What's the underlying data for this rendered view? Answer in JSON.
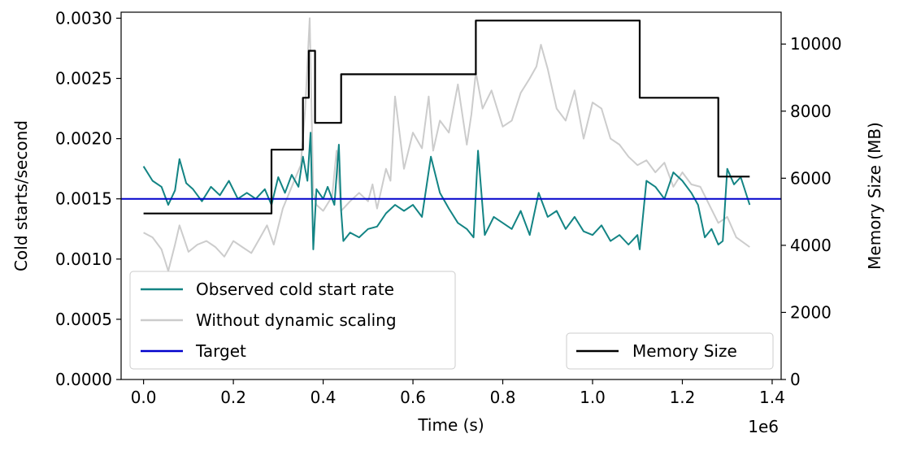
{
  "chart_data": {
    "type": "line",
    "xlabel": "Time (s)",
    "x_offset_label": "1e6",
    "ylabel": "Cold starts/second",
    "y2label": "Memory Size (MB)",
    "xlim": [
      -0.05,
      1.42
    ],
    "ylim": [
      0,
      0.00305
    ],
    "y2lim": [
      0,
      10950
    ],
    "xticks": [
      0.0,
      0.2,
      0.4,
      0.6,
      0.8,
      1.0,
      1.2,
      1.4
    ],
    "xtick_labels": [
      "0.0",
      "0.2",
      "0.4",
      "0.6",
      "0.8",
      "1.0",
      "1.2",
      "1.4"
    ],
    "yticks": [
      0,
      0.0005,
      0.001,
      0.0015,
      0.002,
      0.0025,
      0.003
    ],
    "ytick_labels": [
      "0.0000",
      "0.0005",
      "0.0010",
      "0.0015",
      "0.0020",
      "0.0025",
      "0.0030"
    ],
    "y2ticks": [
      0,
      2000,
      4000,
      6000,
      8000,
      10000
    ],
    "y2tick_labels": [
      "0",
      "2000",
      "4000",
      "6000",
      "8000",
      "10000"
    ],
    "grid": false,
    "legend_main": {
      "placement": "lower-left",
      "entries": [
        "Observed cold start rate",
        "Without dynamic scaling",
        "Target"
      ]
    },
    "legend_secondary": {
      "placement": "lower-right",
      "entries": [
        "Memory Size"
      ]
    },
    "series": [
      {
        "name": "Observed cold start rate",
        "axis": "left",
        "color": "#138484",
        "x": [
          0.0,
          0.02,
          0.04,
          0.055,
          0.07,
          0.08,
          0.095,
          0.11,
          0.13,
          0.15,
          0.17,
          0.19,
          0.21,
          0.23,
          0.25,
          0.27,
          0.285,
          0.3,
          0.315,
          0.33,
          0.345,
          0.355,
          0.365,
          0.372,
          0.378,
          0.385,
          0.4,
          0.41,
          0.425,
          0.435,
          0.44,
          0.445,
          0.46,
          0.48,
          0.5,
          0.52,
          0.54,
          0.56,
          0.58,
          0.6,
          0.62,
          0.64,
          0.66,
          0.68,
          0.7,
          0.72,
          0.735,
          0.745,
          0.76,
          0.78,
          0.8,
          0.82,
          0.84,
          0.86,
          0.88,
          0.9,
          0.92,
          0.94,
          0.96,
          0.98,
          1.0,
          1.02,
          1.04,
          1.06,
          1.08,
          1.1,
          1.105,
          1.12,
          1.14,
          1.16,
          1.18,
          1.2,
          1.22,
          1.235,
          1.25,
          1.265,
          1.28,
          1.29,
          1.3,
          1.315,
          1.33,
          1.35
        ],
        "y": [
          0.00177,
          0.00165,
          0.0016,
          0.00145,
          0.00157,
          0.00183,
          0.00163,
          0.00158,
          0.00148,
          0.0016,
          0.00153,
          0.00165,
          0.0015,
          0.00155,
          0.0015,
          0.00158,
          0.00145,
          0.00168,
          0.00155,
          0.0017,
          0.0016,
          0.00185,
          0.00165,
          0.00205,
          0.00108,
          0.00158,
          0.0015,
          0.0016,
          0.00145,
          0.00195,
          0.0014,
          0.00115,
          0.00122,
          0.00118,
          0.00125,
          0.00127,
          0.00138,
          0.00145,
          0.0014,
          0.00145,
          0.00135,
          0.00185,
          0.00155,
          0.00142,
          0.0013,
          0.00125,
          0.00118,
          0.0019,
          0.0012,
          0.00135,
          0.0013,
          0.00125,
          0.0014,
          0.0012,
          0.00155,
          0.00135,
          0.0014,
          0.00125,
          0.00135,
          0.00123,
          0.0012,
          0.00128,
          0.00115,
          0.0012,
          0.00112,
          0.0012,
          0.00108,
          0.00165,
          0.0016,
          0.0015,
          0.00172,
          0.00165,
          0.00155,
          0.00145,
          0.00118,
          0.00125,
          0.00112,
          0.00115,
          0.00175,
          0.00162,
          0.00168,
          0.00145
        ]
      },
      {
        "name": "Without dynamic scaling",
        "axis": "left",
        "color": "#cccccc",
        "x": [
          0.0,
          0.02,
          0.04,
          0.055,
          0.07,
          0.08,
          0.1,
          0.12,
          0.14,
          0.16,
          0.18,
          0.2,
          0.22,
          0.24,
          0.26,
          0.275,
          0.29,
          0.31,
          0.33,
          0.35,
          0.36,
          0.37,
          0.378,
          0.385,
          0.4,
          0.42,
          0.43,
          0.44,
          0.46,
          0.48,
          0.5,
          0.51,
          0.52,
          0.54,
          0.55,
          0.56,
          0.58,
          0.6,
          0.62,
          0.635,
          0.645,
          0.66,
          0.68,
          0.7,
          0.72,
          0.73,
          0.74,
          0.755,
          0.775,
          0.8,
          0.82,
          0.84,
          0.86,
          0.875,
          0.885,
          0.9,
          0.92,
          0.94,
          0.96,
          0.98,
          1.0,
          1.02,
          1.04,
          1.06,
          1.08,
          1.1,
          1.12,
          1.14,
          1.16,
          1.18,
          1.2,
          1.22,
          1.24,
          1.26,
          1.28,
          1.3,
          1.32,
          1.35
        ],
        "y": [
          0.00122,
          0.00118,
          0.00108,
          0.0009,
          0.00112,
          0.00128,
          0.00106,
          0.00112,
          0.00115,
          0.0011,
          0.00102,
          0.00115,
          0.0011,
          0.00105,
          0.00118,
          0.00128,
          0.00112,
          0.00142,
          0.0016,
          0.00178,
          0.00225,
          0.003,
          0.00155,
          0.00145,
          0.0014,
          0.00152,
          0.0019,
          0.0014,
          0.00148,
          0.00155,
          0.00148,
          0.00162,
          0.00142,
          0.00175,
          0.00165,
          0.00235,
          0.00175,
          0.00205,
          0.00192,
          0.00235,
          0.0019,
          0.00215,
          0.00205,
          0.00245,
          0.00195,
          0.0022,
          0.00255,
          0.00225,
          0.0024,
          0.0021,
          0.00215,
          0.00238,
          0.0025,
          0.0026,
          0.00278,
          0.00258,
          0.00225,
          0.00215,
          0.0024,
          0.002,
          0.0023,
          0.00225,
          0.002,
          0.00195,
          0.00185,
          0.00178,
          0.00182,
          0.00172,
          0.0018,
          0.0016,
          0.00172,
          0.00162,
          0.0016,
          0.00145,
          0.0013,
          0.00135,
          0.00118,
          0.0011
        ]
      },
      {
        "name": "Target",
        "axis": "left",
        "color": "#0000cc",
        "x": [
          -0.05,
          1.42
        ],
        "y": [
          0.0015,
          0.0015
        ]
      },
      {
        "name": "Memory Size",
        "axis": "right",
        "color": "#000000",
        "step": true,
        "x": [
          0.0,
          0.285,
          0.285,
          0.355,
          0.355,
          0.368,
          0.368,
          0.382,
          0.382,
          0.44,
          0.44,
          0.74,
          0.74,
          1.105,
          1.105,
          1.28,
          1.28,
          1.35
        ],
        "y": [
          4950,
          4950,
          6850,
          6850,
          8400,
          8400,
          9800,
          9800,
          7650,
          7650,
          9100,
          9100,
          10700,
          10700,
          8400,
          8400,
          6050,
          6050
        ]
      }
    ]
  }
}
